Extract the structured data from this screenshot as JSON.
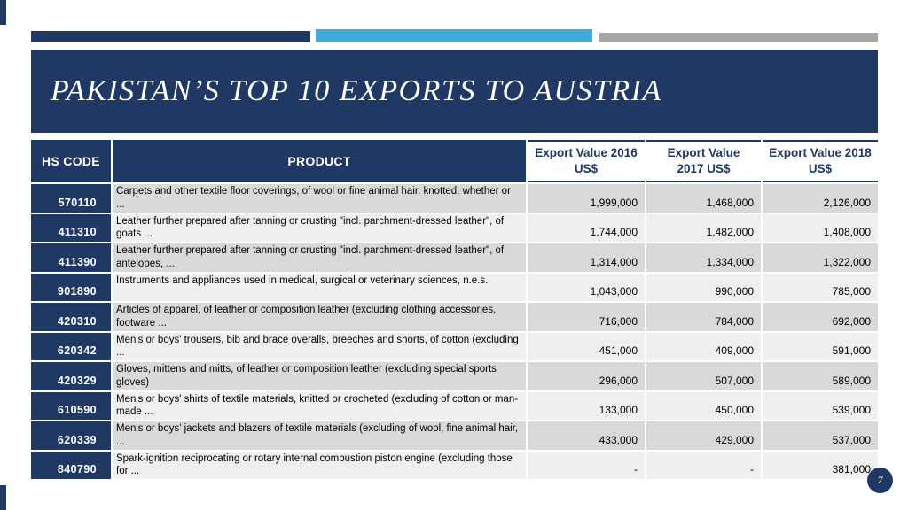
{
  "slide": {
    "title": "PAKISTAN’S TOP 10 EXPORTS TO AUSTRIA",
    "page_number": "7",
    "colors": {
      "navy": "#1F3864",
      "accent_blue": "#3FA9DC",
      "accent_gray": "#A6A6A6",
      "band_dark": "#D9D9D9",
      "band_light": "#EFEFEF"
    }
  },
  "table": {
    "col_headers": {
      "hs_code": "HS CODE",
      "product": "PRODUCT"
    },
    "value_headers": [
      {
        "line1": "Export Value 2016",
        "line2": "US$"
      },
      {
        "line1": "Export Value",
        "line2": "2017 US$"
      },
      {
        "line1": "Export Value 2018",
        "line2": "US$"
      }
    ],
    "rows": [
      {
        "hs_code": "570110",
        "product": "Carpets and other textile floor coverings, of wool or fine animal hair, knotted, whether or ...",
        "v2016": "1,999,000",
        "v2017": "1,468,000",
        "v2018": "2,126,000"
      },
      {
        "hs_code": "411310",
        "product": "Leather further prepared after tanning or crusting \"incl. parchment-dressed leather\", of goats ...",
        "v2016": "1,744,000",
        "v2017": "1,482,000",
        "v2018": "1,408,000"
      },
      {
        "hs_code": "411390",
        "product": "Leather further prepared after tanning or crusting \"incl. parchment-dressed leather\", of antelopes, ...",
        "v2016": "1,314,000",
        "v2017": "1,334,000",
        "v2018": "1,322,000"
      },
      {
        "hs_code": "901890",
        "product": "Instruments and appliances used in medical, surgical or veterinary sciences, n.e.s.",
        "v2016": "1,043,000",
        "v2017": "990,000",
        "v2018": "785,000"
      },
      {
        "hs_code": "420310",
        "product": "Articles of apparel, of leather or composition leather (excluding clothing accessories, footware ...",
        "v2016": "716,000",
        "v2017": "784,000",
        "v2018": "692,000"
      },
      {
        "hs_code": "620342",
        "product": "Men's or boys' trousers, bib and brace overalls, breeches and shorts, of cotton (excluding ...",
        "v2016": "451,000",
        "v2017": "409,000",
        "v2018": "591,000"
      },
      {
        "hs_code": "420329",
        "product": "Gloves, mittens and mitts, of leather or composition leather (excluding special sports gloves)",
        "v2016": "296,000",
        "v2017": "507,000",
        "v2018": "589,000"
      },
      {
        "hs_code": "610590",
        "product": "Men's or boys' shirts of textile materials, knitted or crocheted (excluding of cotton or man-made ...",
        "v2016": "133,000",
        "v2017": "450,000",
        "v2018": "539,000"
      },
      {
        "hs_code": "620339",
        "product": "Men's or boys' jackets and blazers of textile materials (excluding of wool, fine animal hair, ...",
        "v2016": "433,000",
        "v2017": "429,000",
        "v2018": "537,000"
      },
      {
        "hs_code": "840790",
        "product": "Spark-ignition reciprocating or rotary internal combustion piston engine (excluding those for ...",
        "v2016": "-",
        "v2017": "-",
        "v2018": "381,000"
      }
    ]
  }
}
